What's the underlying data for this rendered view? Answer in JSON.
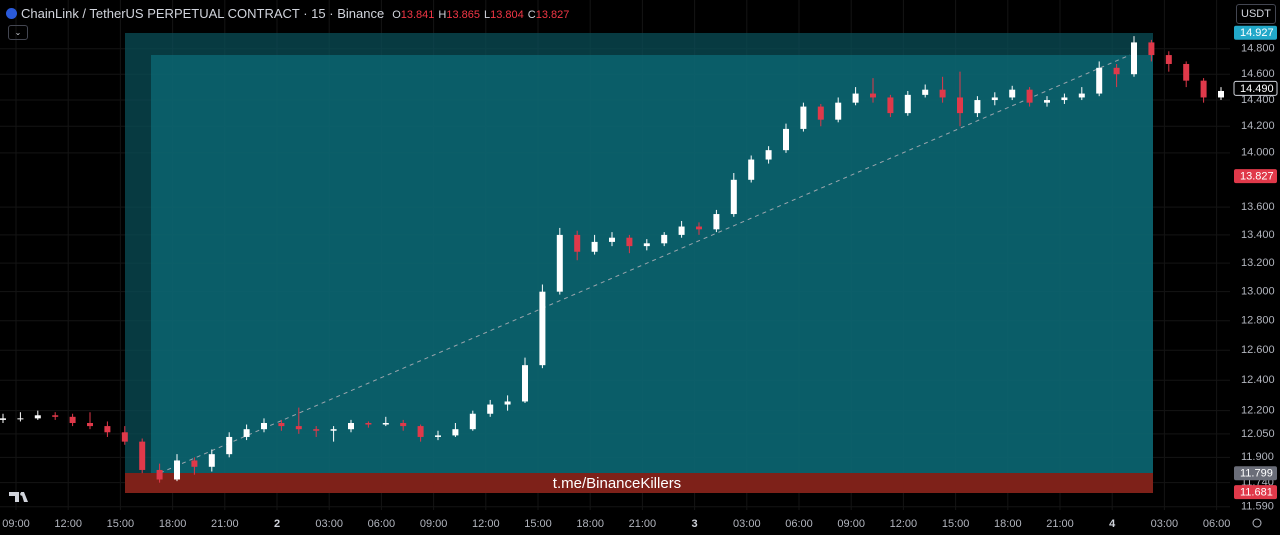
{
  "header": {
    "symbol": "ChainLink / TetherUS PERPETUAL CONTRACT · 15 · Binance",
    "ohlc": [
      {
        "key": "O",
        "value": "13.841"
      },
      {
        "key": "H",
        "value": "13.865"
      },
      {
        "key": "L",
        "value": "13.804"
      },
      {
        "key": "C",
        "value": "13.827"
      }
    ],
    "currency": "USDT"
  },
  "chart_data": {
    "type": "candlestick",
    "log": true,
    "grid": true,
    "up_color": "#ffffff",
    "down_color": "#e0394a",
    "ylim": [
      11.57,
      15.19
    ],
    "yticks": [
      {
        "value": 14.8,
        "label": "14.800"
      },
      {
        "value": 14.6,
        "label": "14.600"
      },
      {
        "value": 14.4,
        "label": "14.400"
      },
      {
        "value": 14.2,
        "label": "14.200"
      },
      {
        "value": 14,
        "label": "14.000"
      },
      {
        "value": 13.6,
        "label": "13.600"
      },
      {
        "value": 13.4,
        "label": "13.400"
      },
      {
        "value": 13.2,
        "label": "13.200"
      },
      {
        "value": 13,
        "label": "13.000"
      },
      {
        "value": 12.8,
        "label": "12.800"
      },
      {
        "value": 12.6,
        "label": "12.600"
      },
      {
        "value": 12.4,
        "label": "12.400"
      },
      {
        "value": 12.2,
        "label": "12.200"
      },
      {
        "value": 12.05,
        "label": "12.050"
      },
      {
        "value": 11.9,
        "label": "11.900"
      },
      {
        "value": 11.74,
        "label": "11.740"
      },
      {
        "value": 11.59,
        "label": "11.590"
      }
    ],
    "x_labels": [
      "09:00",
      "12:00",
      "15:00",
      "18:00",
      "21:00",
      "2",
      "03:00",
      "06:00",
      "09:00",
      "12:00",
      "15:00",
      "18:00",
      "21:00",
      "3",
      "03:00",
      "06:00",
      "09:00",
      "12:00",
      "15:00",
      "18:00",
      "21:00",
      "4",
      "03:00",
      "06:00"
    ],
    "price_labels": [
      {
        "value": 14.927,
        "label": "14.927",
        "color": "#22a8c9"
      },
      {
        "value": 14.49,
        "label": "14.490",
        "color": "#000000"
      },
      {
        "value": 13.827,
        "label": "13.827",
        "color": "#e0394a"
      },
      {
        "value": 11.799,
        "label": "11.799",
        "color": "#6a6d78"
      },
      {
        "value": 11.681,
        "label": "11.681",
        "color": "#e0394a"
      }
    ],
    "annotation": "t.me/BinanceKillers",
    "candles": [
      [
        12.14,
        12.18,
        12.12,
        12.15
      ],
      [
        12.15,
        12.19,
        12.13,
        12.15
      ],
      [
        12.15,
        12.2,
        12.14,
        12.17
      ],
      [
        12.17,
        12.19,
        12.14,
        12.16
      ],
      [
        12.16,
        12.18,
        12.1,
        12.12
      ],
      [
        12.12,
        12.19,
        12.08,
        12.1
      ],
      [
        12.1,
        12.13,
        12.03,
        12.06
      ],
      [
        12.06,
        12.1,
        11.98,
        12.0
      ],
      [
        12.0,
        12.02,
        11.8,
        11.82
      ],
      [
        11.82,
        11.86,
        11.74,
        11.76
      ],
      [
        11.76,
        11.92,
        11.75,
        11.88
      ],
      [
        11.88,
        11.9,
        11.79,
        11.84
      ],
      [
        11.84,
        11.95,
        11.81,
        11.92
      ],
      [
        11.92,
        12.06,
        11.9,
        12.03
      ],
      [
        12.03,
        12.11,
        12.01,
        12.08
      ],
      [
        12.08,
        12.15,
        12.06,
        12.12
      ],
      [
        12.12,
        12.14,
        12.07,
        12.1
      ],
      [
        12.1,
        12.22,
        12.05,
        12.08
      ],
      [
        12.08,
        12.1,
        12.03,
        12.07
      ],
      [
        12.07,
        12.1,
        12.0,
        12.08
      ],
      [
        12.08,
        12.14,
        12.06,
        12.12
      ],
      [
        12.12,
        12.13,
        12.09,
        12.11
      ],
      [
        12.11,
        12.16,
        12.1,
        12.12
      ],
      [
        12.12,
        12.14,
        12.07,
        12.1
      ],
      [
        12.1,
        12.11,
        12.0,
        12.03
      ],
      [
        12.03,
        12.07,
        12.01,
        12.04
      ],
      [
        12.04,
        12.12,
        12.03,
        12.08
      ],
      [
        12.08,
        12.2,
        12.07,
        12.18
      ],
      [
        12.18,
        12.27,
        12.16,
        12.24
      ],
      [
        12.24,
        12.3,
        12.2,
        12.26
      ],
      [
        12.26,
        12.55,
        12.25,
        12.5
      ],
      [
        12.5,
        13.05,
        12.48,
        13.0
      ],
      [
        13.0,
        13.45,
        12.98,
        13.4
      ],
      [
        13.4,
        13.43,
        13.22,
        13.28
      ],
      [
        13.28,
        13.4,
        13.26,
        13.35
      ],
      [
        13.35,
        13.42,
        13.32,
        13.38
      ],
      [
        13.38,
        13.4,
        13.27,
        13.32
      ],
      [
        13.32,
        13.37,
        13.29,
        13.34
      ],
      [
        13.34,
        13.42,
        13.32,
        13.4
      ],
      [
        13.4,
        13.5,
        13.38,
        13.46
      ],
      [
        13.46,
        13.49,
        13.4,
        13.44
      ],
      [
        13.44,
        13.58,
        13.42,
        13.55
      ],
      [
        13.55,
        13.85,
        13.53,
        13.8
      ],
      [
        13.8,
        13.98,
        13.78,
        13.95
      ],
      [
        13.95,
        14.05,
        13.92,
        14.02
      ],
      [
        14.02,
        14.22,
        14.0,
        14.18
      ],
      [
        14.18,
        14.38,
        14.16,
        14.35
      ],
      [
        14.35,
        14.37,
        14.2,
        14.25
      ],
      [
        14.25,
        14.42,
        14.23,
        14.38
      ],
      [
        14.38,
        14.5,
        14.36,
        14.45
      ],
      [
        14.45,
        14.57,
        14.38,
        14.42
      ],
      [
        14.42,
        14.44,
        14.27,
        14.3
      ],
      [
        14.3,
        14.47,
        14.28,
        14.44
      ],
      [
        14.44,
        14.52,
        14.42,
        14.48
      ],
      [
        14.48,
        14.58,
        14.38,
        14.42
      ],
      [
        14.42,
        14.62,
        14.2,
        14.3
      ],
      [
        14.3,
        14.43,
        14.27,
        14.4
      ],
      [
        14.4,
        14.46,
        14.36,
        14.42
      ],
      [
        14.42,
        14.51,
        14.4,
        14.48
      ],
      [
        14.48,
        14.5,
        14.35,
        14.38
      ],
      [
        14.38,
        14.43,
        14.35,
        14.4
      ],
      [
        14.4,
        14.45,
        14.37,
        14.42
      ],
      [
        14.42,
        14.5,
        14.4,
        14.45
      ],
      [
        14.45,
        14.7,
        14.43,
        14.65
      ],
      [
        14.65,
        14.68,
        14.5,
        14.6
      ],
      [
        14.6,
        14.9,
        14.58,
        14.85
      ],
      [
        14.85,
        14.87,
        14.7,
        14.75
      ],
      [
        14.75,
        14.78,
        14.62,
        14.68
      ],
      [
        14.68,
        14.7,
        14.5,
        14.55
      ],
      [
        14.55,
        14.57,
        14.38,
        14.42
      ],
      [
        14.42,
        14.5,
        14.4,
        14.47
      ]
    ]
  }
}
